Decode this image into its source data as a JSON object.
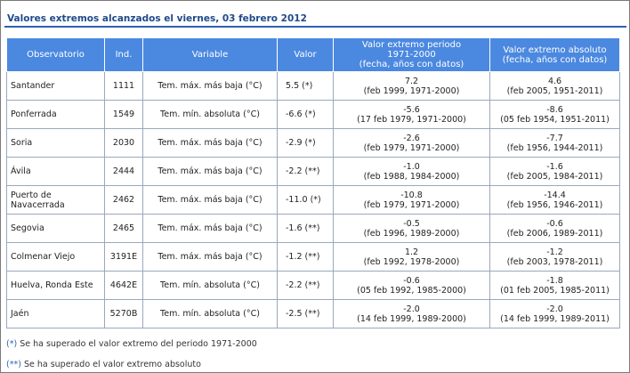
{
  "title": "Valores extremos alcanzados el viernes, 03 febrero 2012",
  "headers": {
    "observatorio": "Observatorio",
    "ind": "Ind.",
    "variable": "Variable",
    "valor": "Valor",
    "periodo_line1": "Valor extremo periodo",
    "periodo_line2": "1971-2000",
    "periodo_line3": "(fecha, años con datos)",
    "absoluto_line1": "Valor extremo absoluto",
    "absoluto_line2": "(fecha, años con datos)"
  },
  "rows": [
    {
      "obs": "Santander",
      "ind": "1111",
      "variable": "Tem. máx. más baja (°C)",
      "valor": "5.5 (*)",
      "p_val": "7.2",
      "p_date": "(feb 1999, 1971-2000)",
      "a_val": "4.6",
      "a_date": "(feb 2005, 1951-2011)"
    },
    {
      "obs": "Ponferrada",
      "ind": "1549",
      "variable": "Tem. mín. absoluta (°C)",
      "valor": "-6.6 (*)",
      "p_val": "-5.6",
      "p_date": "(17 feb 1979, 1971-2000)",
      "a_val": "-8.6",
      "a_date": "(05 feb 1954, 1951-2011)"
    },
    {
      "obs": "Soria",
      "ind": "2030",
      "variable": "Tem. máx. más baja (°C)",
      "valor": "-2.9 (*)",
      "p_val": "-2.6",
      "p_date": "(feb 1979, 1971-2000)",
      "a_val": "-7.7",
      "a_date": "(feb 1956, 1944-2011)"
    },
    {
      "obs": "Ávila",
      "ind": "2444",
      "variable": "Tem. máx. más baja (°C)",
      "valor": "-2.2 (**)",
      "p_val": "-1.0",
      "p_date": "(feb 1988, 1984-2000)",
      "a_val": "-1.6",
      "a_date": "(feb 2005, 1984-2011)"
    },
    {
      "obs": "Puerto de Navacerrada",
      "ind": "2462",
      "variable": "Tem. máx. más baja (°C)",
      "valor": "-11.0 (*)",
      "p_val": "-10.8",
      "p_date": "(feb 1979, 1971-2000)",
      "a_val": "-14.4",
      "a_date": "(feb 1956, 1946-2011)"
    },
    {
      "obs": "Segovia",
      "ind": "2465",
      "variable": "Tem. máx. más baja (°C)",
      "valor": "-1.6 (**)",
      "p_val": "-0.5",
      "p_date": "(feb 1996, 1989-2000)",
      "a_val": "-0.6",
      "a_date": "(feb 2006, 1989-2011)"
    },
    {
      "obs": "Colmenar Viejo",
      "ind": "3191E",
      "variable": "Tem. máx. más baja (°C)",
      "valor": "-1.2 (**)",
      "p_val": "1.2",
      "p_date": "(feb 1992, 1978-2000)",
      "a_val": "-1.2",
      "a_date": "(feb 2003, 1978-2011)"
    },
    {
      "obs": "Huelva, Ronda Este",
      "ind": "4642E",
      "variable": "Tem. mín. absoluta (°C)",
      "valor": "-2.2 (**)",
      "p_val": "-0.6",
      "p_date": "(05 feb 1992, 1985-2000)",
      "a_val": "-1.8",
      "a_date": "(01 feb 2005, 1985-2011)"
    },
    {
      "obs": "Jaén",
      "ind": "5270B",
      "variable": "Tem. mín. absoluta (°C)",
      "valor": "-2.5 (**)",
      "p_val": "-2.0",
      "p_date": "(14 feb 1999, 1989-2000)",
      "a_val": "-2.0",
      "a_date": "(14 feb 1999, 1989-2011)"
    }
  ],
  "footnotes": [
    {
      "mark": "(*)",
      "text": "Se ha superado el valor extremo del periodo 1971-2000"
    },
    {
      "mark": "(**)",
      "text": "Se ha superado el valor extremo absoluto"
    }
  ],
  "colors": {
    "header_bg": "#4b88e0",
    "title_text": "#1f4a8a",
    "title_rule": "#2d62b0"
  }
}
